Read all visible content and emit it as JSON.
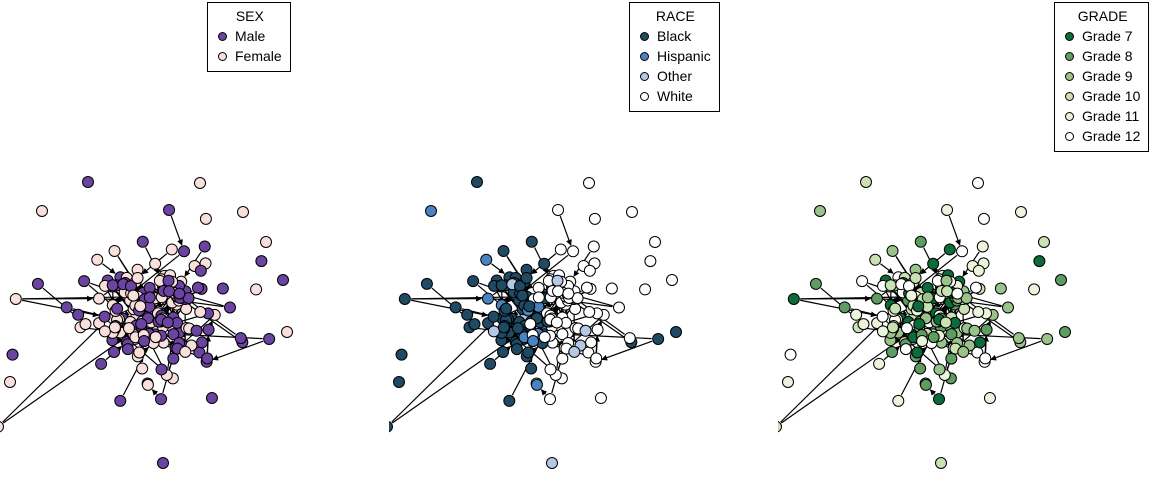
{
  "panels": [
    {
      "id": "sex",
      "legend": {
        "title": "SEX",
        "items": [
          {
            "label": "Male",
            "color": "#6a44a0"
          },
          {
            "label": "Female",
            "color": "#f9e0dc"
          }
        ]
      }
    },
    {
      "id": "race",
      "legend": {
        "title": "RACE",
        "items": [
          {
            "label": "Black",
            "color": "#1f4a63"
          },
          {
            "label": "Hispanic",
            "color": "#4a84c0"
          },
          {
            "label": "Other",
            "color": "#b7c8e6"
          },
          {
            "label": "White",
            "color": "#ffffff"
          }
        ]
      }
    },
    {
      "id": "grade",
      "legend": {
        "title": "GRADE",
        "items": [
          {
            "label": "Grade 7",
            "color": "#0c6b3a"
          },
          {
            "label": "Grade 8",
            "color": "#5d9d62"
          },
          {
            "label": "Grade 9",
            "color": "#9ac38c"
          },
          {
            "label": "Grade 10",
            "color": "#c9e1b3"
          },
          {
            "label": "Grade 11",
            "color": "#ecf4dc"
          },
          {
            "label": "Grade 12",
            "color": "#ffffff"
          }
        ]
      }
    }
  ],
  "chart_data": {
    "type": "network",
    "node_count": 205,
    "edge_count": 203,
    "directed": true,
    "panels": [
      "SEX",
      "RACE",
      "GRADE"
    ]
  }
}
